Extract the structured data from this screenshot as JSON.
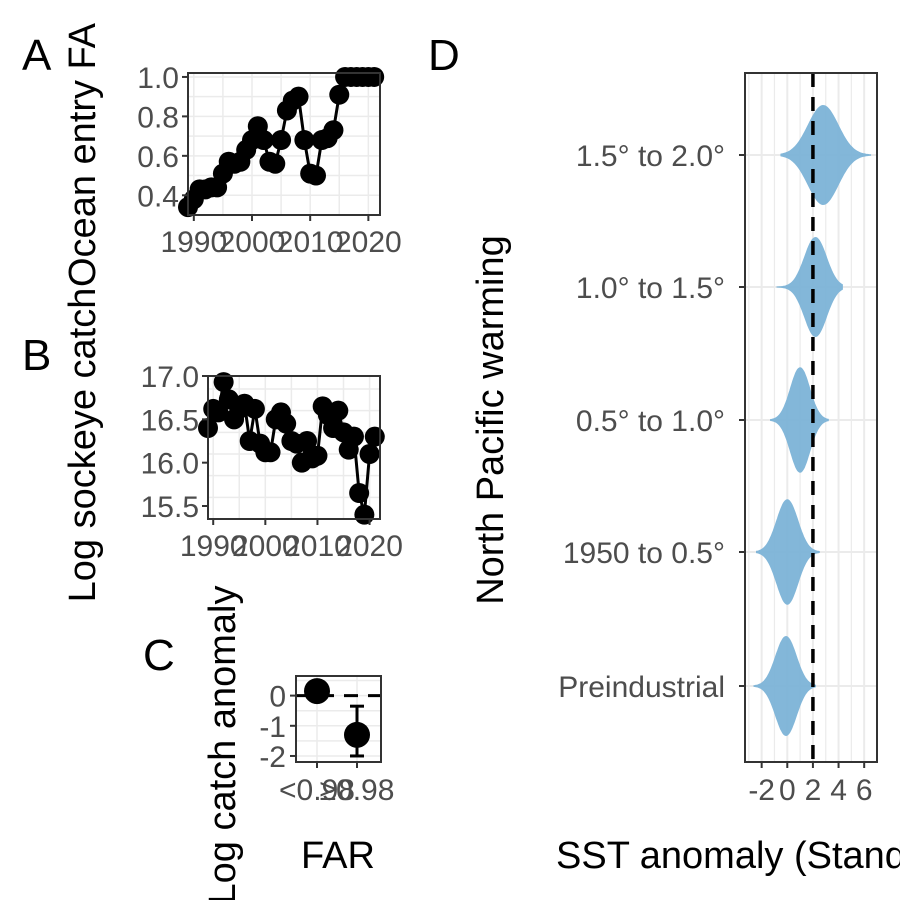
{
  "chart_data": [
    {
      "panel": "A",
      "type": "line",
      "ylabel": "Ocean entry FA",
      "xlim": [
        1989,
        2022
      ],
      "ylim": [
        0.3,
        1.02
      ],
      "xticks": [
        1990,
        2000,
        2010,
        2020
      ],
      "xtick_labels": [
        "1990",
        "2000",
        "2010",
        "2020"
      ],
      "yticks": [
        0.4,
        0.6,
        0.8,
        1.0
      ],
      "ytick_labels": [
        "0.4",
        "0.6",
        "0.8",
        "1.0"
      ],
      "x": [
        1989,
        1990,
        1991,
        1992,
        1993,
        1994,
        1995,
        1996,
        1997,
        1998,
        1999,
        2000,
        2001,
        2002,
        2003,
        2004,
        2005,
        2006,
        2007,
        2008,
        2009,
        2010,
        2011,
        2012,
        2013,
        2014,
        2015,
        2016,
        2017,
        2018,
        2019,
        2020,
        2021
      ],
      "y": [
        0.34,
        0.38,
        0.43,
        0.43,
        0.44,
        0.44,
        0.51,
        0.57,
        0.56,
        0.57,
        0.63,
        0.68,
        0.75,
        0.68,
        0.57,
        0.56,
        0.68,
        0.83,
        0.88,
        0.9,
        0.68,
        0.51,
        0.5,
        0.68,
        0.69,
        0.73,
        0.91,
        1.0,
        1.0,
        1.0,
        1.0,
        1.0,
        1.0
      ]
    },
    {
      "panel": "B",
      "type": "line",
      "ylabel": "Log sockeye catch",
      "xlim": [
        1989,
        2022
      ],
      "ylim": [
        15.35,
        17.0
      ],
      "xticks": [
        1990,
        2000,
        2010,
        2020
      ],
      "xtick_labels": [
        "1990",
        "2000",
        "2010",
        "2020"
      ],
      "yticks": [
        15.5,
        16.0,
        16.5,
        17.0
      ],
      "ytick_labels": [
        "15.5",
        "16.0",
        "16.5",
        "17.0"
      ],
      "x": [
        1989,
        1990,
        1991,
        1992,
        1993,
        1994,
        1995,
        1996,
        1997,
        1998,
        1999,
        2000,
        2001,
        2002,
        2003,
        2004,
        2005,
        2006,
        2007,
        2008,
        2009,
        2010,
        2011,
        2012,
        2013,
        2014,
        2015,
        2016,
        2017,
        2018,
        2019,
        2020,
        2021
      ],
      "y": [
        16.4,
        16.62,
        16.58,
        16.93,
        16.73,
        16.5,
        16.62,
        16.68,
        16.25,
        16.62,
        16.22,
        16.12,
        16.12,
        16.5,
        16.58,
        16.45,
        16.25,
        16.22,
        16.0,
        16.25,
        16.05,
        16.08,
        16.65,
        16.55,
        16.4,
        16.6,
        16.35,
        16.15,
        16.3,
        15.65,
        15.4,
        16.1,
        16.3
      ]
    },
    {
      "panel": "C",
      "type": "scatter",
      "xlabel": "FAR",
      "ylabel": "Log catch anomaly",
      "categories": [
        "<0.98",
        "≥0.98"
      ],
      "values": [
        0.15,
        -1.3
      ],
      "err_low": [
        0.15,
        -2.0
      ],
      "err_high": [
        0.15,
        -0.35
      ],
      "yticks": [
        0,
        -1,
        -2
      ],
      "ytick_labels": [
        "0",
        "-1",
        "-2"
      ],
      "ylim": [
        -2.2,
        0.65
      ],
      "reference_line": 0.0
    },
    {
      "panel": "D",
      "type": "violin",
      "xlabel": "SST anomaly (Standard deviations)",
      "ylabel": "North Pacific warming",
      "categories": [
        "Preindustrial",
        "1950 to 0.5°",
        "0.5° to 1.0°",
        "1.0° to 1.5°",
        "1.5° to 2.0°"
      ],
      "xlim": [
        -3.3,
        7.0
      ],
      "xticks": [
        -2,
        0,
        2,
        4,
        6
      ],
      "xtick_labels": [
        "-2",
        "0",
        "2",
        "4",
        "6"
      ],
      "reference_line": 2.0,
      "violins": [
        {
          "category": "Preindustrial",
          "center": -0.1,
          "min": -2.6,
          "max": 2.2,
          "width": 0.9
        },
        {
          "category": "1950 to 0.5°",
          "center": 0.0,
          "min": -2.4,
          "max": 2.5,
          "width": 0.95
        },
        {
          "category": "0.5° to 1.0°",
          "center": 1.0,
          "min": -1.3,
          "max": 3.2,
          "width": 0.95
        },
        {
          "category": "1.0° to 1.5°",
          "center": 2.2,
          "min": -0.8,
          "max": 4.3,
          "width": 0.9
        },
        {
          "category": "1.5° to 2.0°",
          "center": 2.8,
          "min": -0.5,
          "max": 6.5,
          "width": 0.9
        }
      ],
      "violin_color": "#7db4d8"
    }
  ],
  "panel_labels": [
    "A",
    "B",
    "C",
    "D"
  ]
}
